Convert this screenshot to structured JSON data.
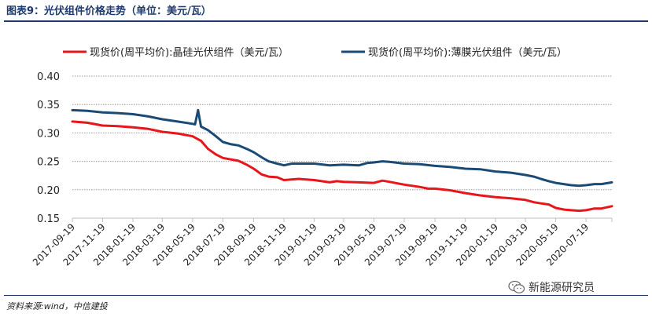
{
  "figure": {
    "title": "图表9：光伏组件价格走势（单位：美元/瓦）",
    "source": "资料来源:wind，中信建投",
    "watermark": "新能源研究员",
    "watermark_icon": "wechat-icon"
  },
  "colors": {
    "series1": "#e8151b",
    "series2": "#1b4a74",
    "grid": "#9a9a9a",
    "axis": "#bfbfbf",
    "text": "#222222"
  },
  "chart_data": {
    "type": "line",
    "title": "",
    "xlabel": "",
    "ylabel": "",
    "ylim": [
      0.15,
      0.4
    ],
    "yticks": [
      "0.40",
      "0.35",
      "0.30",
      "0.25",
      "0.20",
      "0.15"
    ],
    "grid": "horizontal dotted",
    "legend": "top",
    "tick_labels": [
      "2017-09-19",
      "2017-11-19",
      "2018-01-19",
      "2018-03-19",
      "2018-05-19",
      "2018-07-19",
      "2018-09-19",
      "2018-11-19",
      "2019-01-19",
      "2019-03-19",
      "2019-05-19",
      "2019-07-19",
      "2019-09-19",
      "2019-11-19",
      "2020-01-19",
      "2020-03-19",
      "2020-05-19",
      "2020-07-19"
    ],
    "x_start": "2017-09-19",
    "x_end": "2020-09-09",
    "series": [
      {
        "name": "现货价(周平均价):晶硅光伏组件（美元/瓦）",
        "points": [
          [
            "2017-09-19",
            0.32
          ],
          [
            "2017-10-19",
            0.318
          ],
          [
            "2017-11-19",
            0.313
          ],
          [
            "2017-12-19",
            0.312
          ],
          [
            "2018-01-19",
            0.31
          ],
          [
            "2018-02-19",
            0.307
          ],
          [
            "2018-03-19",
            0.302
          ],
          [
            "2018-04-19",
            0.299
          ],
          [
            "2018-05-19",
            0.294
          ],
          [
            "2018-06-05",
            0.286
          ],
          [
            "2018-06-19",
            0.272
          ],
          [
            "2018-07-05",
            0.262
          ],
          [
            "2018-07-19",
            0.256
          ],
          [
            "2018-08-19",
            0.251
          ],
          [
            "2018-09-05",
            0.244
          ],
          [
            "2018-09-19",
            0.237
          ],
          [
            "2018-10-05",
            0.227
          ],
          [
            "2018-10-19",
            0.223
          ],
          [
            "2018-11-05",
            0.222
          ],
          [
            "2018-11-19",
            0.217
          ],
          [
            "2018-12-19",
            0.219
          ],
          [
            "2019-01-19",
            0.217
          ],
          [
            "2019-02-19",
            0.213
          ],
          [
            "2019-03-05",
            0.215
          ],
          [
            "2019-03-19",
            0.214
          ],
          [
            "2019-04-19",
            0.213
          ],
          [
            "2019-05-19",
            0.212
          ],
          [
            "2019-06-05",
            0.216
          ],
          [
            "2019-06-19",
            0.214
          ],
          [
            "2019-07-19",
            0.209
          ],
          [
            "2019-08-19",
            0.205
          ],
          [
            "2019-09-05",
            0.202
          ],
          [
            "2019-09-19",
            0.202
          ],
          [
            "2019-10-19",
            0.199
          ],
          [
            "2019-11-19",
            0.194
          ],
          [
            "2019-12-19",
            0.19
          ],
          [
            "2020-01-19",
            0.187
          ],
          [
            "2020-02-19",
            0.185
          ],
          [
            "2020-03-19",
            0.182
          ],
          [
            "2020-04-05",
            0.178
          ],
          [
            "2020-04-19",
            0.176
          ],
          [
            "2020-05-05",
            0.174
          ],
          [
            "2020-05-19",
            0.168
          ],
          [
            "2020-06-05",
            0.165
          ],
          [
            "2020-06-19",
            0.164
          ],
          [
            "2020-07-05",
            0.163
          ],
          [
            "2020-07-19",
            0.164
          ],
          [
            "2020-08-05",
            0.167
          ],
          [
            "2020-08-19",
            0.167
          ],
          [
            "2020-09-09",
            0.171
          ]
        ]
      },
      {
        "name": "现货价(周平均价):薄膜光伏组件（美元/瓦）",
        "points": [
          [
            "2017-09-19",
            0.34
          ],
          [
            "2017-10-19",
            0.339
          ],
          [
            "2017-11-19",
            0.336
          ],
          [
            "2017-12-19",
            0.335
          ],
          [
            "2018-01-19",
            0.333
          ],
          [
            "2018-02-19",
            0.329
          ],
          [
            "2018-03-19",
            0.324
          ],
          [
            "2018-04-19",
            0.32
          ],
          [
            "2018-05-19",
            0.316
          ],
          [
            "2018-05-24",
            0.315
          ],
          [
            "2018-05-30",
            0.34
          ],
          [
            "2018-06-05",
            0.311
          ],
          [
            "2018-06-19",
            0.305
          ],
          [
            "2018-07-05",
            0.294
          ],
          [
            "2018-07-19",
            0.284
          ],
          [
            "2018-08-05",
            0.28
          ],
          [
            "2018-08-19",
            0.278
          ],
          [
            "2018-09-05",
            0.272
          ],
          [
            "2018-09-19",
            0.266
          ],
          [
            "2018-10-05",
            0.257
          ],
          [
            "2018-10-19",
            0.25
          ],
          [
            "2018-11-05",
            0.246
          ],
          [
            "2018-11-19",
            0.243
          ],
          [
            "2018-12-05",
            0.246
          ],
          [
            "2019-01-19",
            0.246
          ],
          [
            "2019-02-19",
            0.243
          ],
          [
            "2019-03-19",
            0.244
          ],
          [
            "2019-04-19",
            0.243
          ],
          [
            "2019-05-05",
            0.247
          ],
          [
            "2019-05-19",
            0.248
          ],
          [
            "2019-06-05",
            0.25
          ],
          [
            "2019-06-19",
            0.249
          ],
          [
            "2019-07-19",
            0.246
          ],
          [
            "2019-08-19",
            0.245
          ],
          [
            "2019-09-19",
            0.242
          ],
          [
            "2019-10-19",
            0.24
          ],
          [
            "2019-11-19",
            0.237
          ],
          [
            "2019-12-19",
            0.236
          ],
          [
            "2020-01-19",
            0.232
          ],
          [
            "2020-02-19",
            0.23
          ],
          [
            "2020-03-19",
            0.226
          ],
          [
            "2020-04-05",
            0.223
          ],
          [
            "2020-04-19",
            0.219
          ],
          [
            "2020-05-05",
            0.215
          ],
          [
            "2020-05-19",
            0.212
          ],
          [
            "2020-06-19",
            0.208
          ],
          [
            "2020-07-05",
            0.207
          ],
          [
            "2020-07-19",
            0.208
          ],
          [
            "2020-08-05",
            0.21
          ],
          [
            "2020-08-19",
            0.21
          ],
          [
            "2020-09-09",
            0.213
          ]
        ]
      }
    ]
  }
}
